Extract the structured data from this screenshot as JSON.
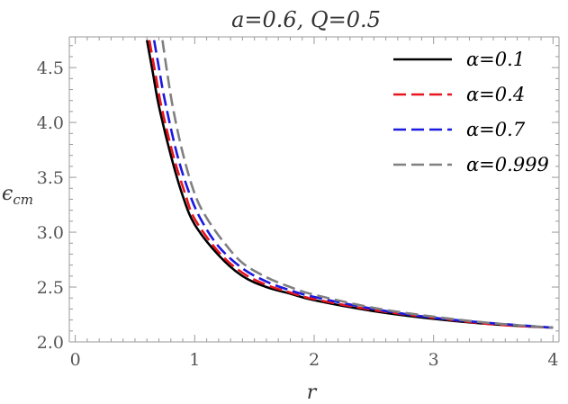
{
  "chart_data": {
    "type": "line",
    "title": "a=0.6, Q=0.5",
    "xlabel": "r",
    "ylabel": "ϵcm",
    "ylabel_main": "ϵ",
    "ylabel_sub": "cm",
    "xlim": [
      -0.05,
      4.05
    ],
    "ylim": [
      2.0,
      4.78
    ],
    "xticks": [
      0,
      1,
      2,
      3,
      4
    ],
    "xtick_labels": [
      "0",
      "1",
      "2",
      "3",
      "4"
    ],
    "yticks": [
      2.0,
      2.5,
      3.0,
      3.5,
      4.0,
      4.5
    ],
    "ytick_labels": [
      "2.0",
      "2.5",
      "3.0",
      "3.5",
      "4.0",
      "4.5"
    ],
    "grid": false,
    "legend_position": "top-right",
    "colors": {
      "alpha_0_1": "#000000",
      "alpha_0_4": "#e8141e",
      "alpha_0_7": "#1a1ae0",
      "alpha_0_999": "#808080"
    },
    "series": [
      {
        "name": "α=0.1",
        "color": "#000000",
        "dash": "solid",
        "x": [
          0.6,
          0.65,
          0.7,
          0.8,
          0.9,
          1.0,
          1.2,
          1.4,
          1.6,
          1.8,
          2.0,
          2.5,
          3.0,
          3.5,
          4.0
        ],
        "y": [
          4.75,
          4.45,
          4.15,
          3.7,
          3.33,
          3.07,
          2.79,
          2.6,
          2.5,
          2.44,
          2.38,
          2.28,
          2.21,
          2.16,
          2.13
        ]
      },
      {
        "name": "α=0.4",
        "color": "#e8141e",
        "dash": "dashed",
        "x": [
          0.62,
          0.67,
          0.72,
          0.82,
          0.92,
          1.0,
          1.2,
          1.4,
          1.6,
          1.8,
          2.0,
          2.5,
          3.0,
          3.5,
          4.0
        ],
        "y": [
          4.75,
          4.45,
          4.15,
          3.7,
          3.35,
          3.12,
          2.82,
          2.63,
          2.52,
          2.45,
          2.39,
          2.29,
          2.22,
          2.16,
          2.13
        ]
      },
      {
        "name": "α=0.7",
        "color": "#1a1ae0",
        "dash": "dashed",
        "x": [
          0.66,
          0.7,
          0.75,
          0.85,
          0.95,
          1.05,
          1.2,
          1.4,
          1.6,
          1.8,
          2.0,
          2.5,
          3.0,
          3.5,
          4.0
        ],
        "y": [
          4.75,
          4.5,
          4.2,
          3.72,
          3.37,
          3.12,
          2.87,
          2.67,
          2.55,
          2.47,
          2.41,
          2.3,
          2.22,
          2.17,
          2.13
        ]
      },
      {
        "name": "α=0.999",
        "color": "#808080",
        "dash": "dashed",
        "x": [
          0.73,
          0.77,
          0.82,
          0.9,
          1.0,
          1.1,
          1.25,
          1.4,
          1.6,
          1.8,
          2.0,
          2.5,
          3.0,
          3.5,
          4.0
        ],
        "y": [
          4.75,
          4.45,
          4.12,
          3.72,
          3.35,
          3.13,
          2.9,
          2.72,
          2.59,
          2.5,
          2.43,
          2.31,
          2.23,
          2.17,
          2.13
        ]
      }
    ]
  }
}
